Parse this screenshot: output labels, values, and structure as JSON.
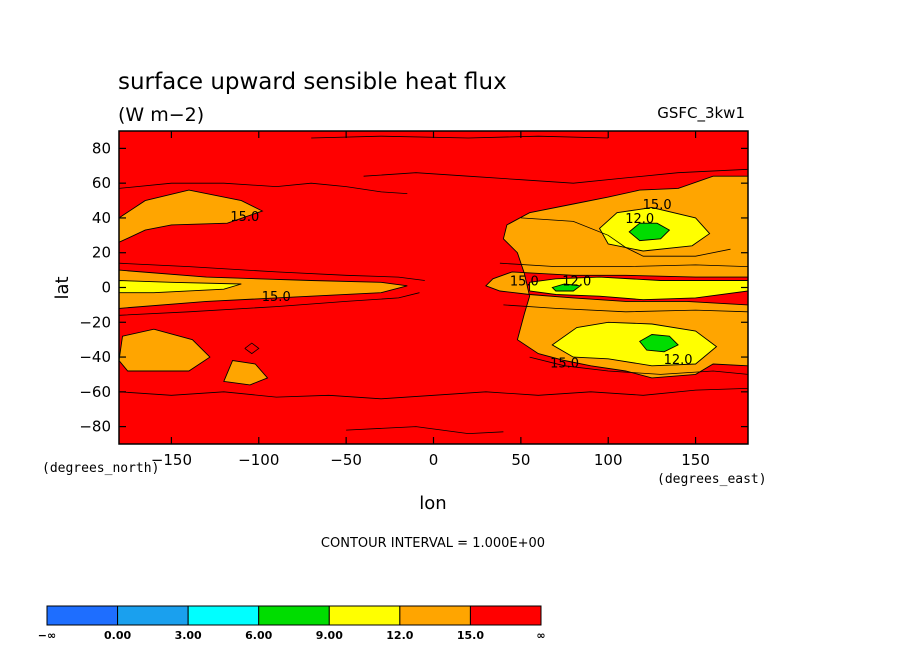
{
  "chart_data": {
    "type": "heatmap",
    "title": "surface upward sensible heat flux",
    "units": "(W m−2)",
    "dataset": "GSFC_3kw1",
    "xlabel": "lon",
    "ylabel": "lat",
    "x_unit_label": "(degrees_east)",
    "y_unit_label": "(degrees_north)",
    "xlim": [
      -180,
      180
    ],
    "ylim": [
      -90,
      90
    ],
    "x_ticks": [
      {
        "value": -150,
        "label": "−150"
      },
      {
        "value": -100,
        "label": "−100"
      },
      {
        "value": -50,
        "label": "−50"
      },
      {
        "value": 0,
        "label": "0"
      },
      {
        "value": 50,
        "label": "50"
      },
      {
        "value": 100,
        "label": "100"
      },
      {
        "value": 150,
        "label": "150"
      }
    ],
    "y_ticks": [
      {
        "value": 80,
        "label": "80"
      },
      {
        "value": 60,
        "label": "60"
      },
      {
        "value": 40,
        "label": "40"
      },
      {
        "value": 20,
        "label": "20"
      },
      {
        "value": 0,
        "label": "0"
      },
      {
        "value": -20,
        "label": "−20"
      },
      {
        "value": -40,
        "label": "−40"
      },
      {
        "value": -60,
        "label": "−60"
      },
      {
        "value": -80,
        "label": "−80"
      }
    ],
    "contour_interval_text": "CONTOUR INTERVAL = 1.000E+00",
    "background_level_color": "#ff0000",
    "regions": [
      {
        "level": 15,
        "color": "#ffa500",
        "points": [
          [
            -180,
            40
          ],
          [
            -165,
            50
          ],
          [
            -140,
            56
          ],
          [
            -110,
            50
          ],
          [
            -98,
            44
          ],
          [
            -118,
            37
          ],
          [
            -150,
            36
          ],
          [
            -165,
            33
          ],
          [
            -180,
            26
          ]
        ]
      },
      {
        "level": 15,
        "color": "#ffa500",
        "points": [
          [
            -180,
            10
          ],
          [
            -130,
            6
          ],
          [
            -70,
            4
          ],
          [
            -30,
            3
          ],
          [
            -15,
            1
          ],
          [
            -30,
            -3
          ],
          [
            -70,
            -5
          ],
          [
            -130,
            -8
          ],
          [
            -180,
            -12
          ]
        ]
      },
      {
        "level": 15,
        "color": "#ffa500",
        "points": [
          [
            -180,
            -42
          ],
          [
            -178,
            -28
          ],
          [
            -160,
            -24
          ],
          [
            -138,
            -30
          ],
          [
            -128,
            -40
          ],
          [
            -140,
            -48
          ],
          [
            -175,
            -48
          ]
        ]
      },
      {
        "level": 15,
        "color": "#ffa500",
        "points": [
          [
            -120,
            -54
          ],
          [
            -115,
            -42
          ],
          [
            -102,
            -44
          ],
          [
            -95,
            -52
          ],
          [
            -105,
            -56
          ]
        ]
      },
      {
        "level": 15,
        "color": "#ffa500",
        "points": [
          [
            42,
            36
          ],
          [
            55,
            43
          ],
          [
            80,
            48
          ],
          [
            100,
            52
          ],
          [
            118,
            56
          ],
          [
            140,
            57
          ],
          [
            160,
            64
          ],
          [
            180,
            64
          ],
          [
            180,
            6
          ],
          [
            150,
            6
          ],
          [
            110,
            7
          ],
          [
            80,
            7
          ],
          [
            45,
            9
          ],
          [
            34,
            5
          ],
          [
            30,
            1
          ],
          [
            38,
            -2
          ],
          [
            55,
            -4
          ],
          [
            80,
            -6
          ],
          [
            110,
            -8
          ],
          [
            145,
            -8
          ],
          [
            180,
            -10
          ],
          [
            180,
            -45
          ],
          [
            160,
            -44
          ],
          [
            150,
            -50
          ],
          [
            125,
            -52
          ],
          [
            110,
            -48
          ],
          [
            90,
            -45
          ],
          [
            75,
            -42
          ],
          [
            60,
            -38
          ],
          [
            48,
            -30
          ],
          [
            52,
            -15
          ],
          [
            55,
            -5
          ],
          [
            52,
            8
          ],
          [
            48,
            20
          ],
          [
            40,
            28
          ]
        ]
      },
      {
        "level": 12,
        "color": "#ffff00",
        "points": [
          [
            -180,
            4
          ],
          [
            -150,
            3
          ],
          [
            -110,
            2
          ],
          [
            -120,
            -1
          ],
          [
            -160,
            -3
          ],
          [
            -180,
            -3
          ]
        ]
      },
      {
        "level": 12,
        "color": "#ffff00",
        "points": [
          [
            95,
            34
          ],
          [
            105,
            43
          ],
          [
            125,
            46
          ],
          [
            150,
            40
          ],
          [
            158,
            31
          ],
          [
            148,
            24
          ],
          [
            120,
            21
          ],
          [
            100,
            25
          ]
        ]
      },
      {
        "level": 12,
        "color": "#ffff00",
        "points": [
          [
            55,
            3
          ],
          [
            70,
            5
          ],
          [
            95,
            6
          ],
          [
            130,
            4
          ],
          [
            180,
            4
          ],
          [
            180,
            -2
          ],
          [
            150,
            -6
          ],
          [
            120,
            -7
          ],
          [
            95,
            -5
          ],
          [
            70,
            -4
          ],
          [
            55,
            -2
          ]
        ]
      },
      {
        "level": 12,
        "color": "#ffff00",
        "points": [
          [
            68,
            -33
          ],
          [
            82,
            -23
          ],
          [
            100,
            -20
          ],
          [
            125,
            -21
          ],
          [
            150,
            -25
          ],
          [
            162,
            -34
          ],
          [
            150,
            -44
          ],
          [
            125,
            -45
          ],
          [
            100,
            -41
          ],
          [
            80,
            -40
          ]
        ]
      },
      {
        "level": 6,
        "color": "#00dd00",
        "points": [
          [
            112,
            32
          ],
          [
            118,
            37
          ],
          [
            128,
            37
          ],
          [
            135,
            33
          ],
          [
            130,
            28
          ],
          [
            118,
            27
          ]
        ]
      },
      {
        "level": 6,
        "color": "#00dd00",
        "points": [
          [
            68,
            0
          ],
          [
            75,
            2
          ],
          [
            84,
            1
          ],
          [
            80,
            -2
          ],
          [
            70,
            -2
          ]
        ]
      },
      {
        "level": 6,
        "color": "#00dd00",
        "points": [
          [
            118,
            -31
          ],
          [
            125,
            -27
          ],
          [
            135,
            -28
          ],
          [
            140,
            -33
          ],
          [
            132,
            -37
          ],
          [
            122,
            -36
          ]
        ]
      }
    ],
    "contour_lines": [
      [
        [
          -180,
          57
        ],
        [
          -150,
          60
        ],
        [
          -120,
          60
        ],
        [
          -90,
          58
        ],
        [
          -70,
          60
        ],
        [
          -50,
          58
        ],
        [
          -30,
          55
        ],
        [
          -15,
          54
        ]
      ],
      [
        [
          -40,
          64
        ],
        [
          -10,
          66
        ],
        [
          20,
          64
        ],
        [
          50,
          62
        ],
        [
          80,
          60
        ],
        [
          110,
          63
        ],
        [
          140,
          66
        ],
        [
          180,
          68
        ]
      ],
      [
        [
          -180,
          -60
        ],
        [
          -150,
          -62
        ],
        [
          -120,
          -60
        ],
        [
          -90,
          -63
        ],
        [
          -60,
          -62
        ],
        [
          -30,
          -64
        ],
        [
          0,
          -62
        ],
        [
          30,
          -60
        ],
        [
          60,
          -62
        ],
        [
          90,
          -60
        ],
        [
          120,
          -62
        ],
        [
          150,
          -59
        ],
        [
          180,
          -58
        ]
      ],
      [
        [
          -180,
          14
        ],
        [
          -140,
          12
        ],
        [
          -90,
          9
        ],
        [
          -50,
          7
        ],
        [
          -20,
          6
        ],
        [
          -5,
          4
        ]
      ],
      [
        [
          -180,
          -16
        ],
        [
          -140,
          -14
        ],
        [
          -90,
          -11
        ],
        [
          -50,
          -8
        ],
        [
          -20,
          -6
        ],
        [
          -8,
          -3
        ]
      ],
      [
        [
          38,
          14
        ],
        [
          70,
          12
        ],
        [
          110,
          12
        ],
        [
          150,
          13
        ],
        [
          180,
          12
        ]
      ],
      [
        [
          40,
          -10
        ],
        [
          70,
          -12
        ],
        [
          110,
          -14
        ],
        [
          150,
          -13
        ],
        [
          180,
          -14
        ]
      ],
      [
        [
          50,
          40
        ],
        [
          80,
          38
        ],
        [
          100,
          30
        ],
        [
          110,
          23
        ],
        [
          120,
          18
        ],
        [
          150,
          18
        ],
        [
          170,
          22
        ]
      ],
      [
        [
          55,
          -40
        ],
        [
          75,
          -45
        ],
        [
          100,
          -48
        ],
        [
          130,
          -50
        ],
        [
          160,
          -48
        ],
        [
          180,
          -50
        ]
      ],
      [
        [
          -70,
          86
        ],
        [
          -30,
          87
        ],
        [
          20,
          86
        ],
        [
          60,
          87
        ],
        [
          100,
          86
        ]
      ],
      [
        [
          -50,
          -82
        ],
        [
          -10,
          -80
        ],
        [
          20,
          -84
        ],
        [
          40,
          -83
        ]
      ],
      [
        [
          -108,
          -35
        ],
        [
          -104,
          -32
        ],
        [
          -100,
          -35
        ],
        [
          -104,
          -38
        ],
        [
          -108,
          -35
        ]
      ]
    ],
    "contour_labels": [
      {
        "x": -108,
        "y": 41,
        "text": "15.0"
      },
      {
        "x": -90,
        "y": -5,
        "text": "15.0"
      },
      {
        "x": 52,
        "y": 4,
        "text": "15.0"
      },
      {
        "x": 82,
        "y": 4,
        "text": "12.0"
      },
      {
        "x": 128,
        "y": 48,
        "text": "15.0"
      },
      {
        "x": 118,
        "y": 40,
        "text": "12.0"
      },
      {
        "x": 75,
        "y": -43,
        "text": "15.0"
      },
      {
        "x": 140,
        "y": -41,
        "text": "12.0"
      }
    ],
    "colorbar": {
      "colors": [
        "#1e6eff",
        "#1aa0ee",
        "#00ffff",
        "#00dd00",
        "#ffff00",
        "#ffa500",
        "#ff0000"
      ],
      "labels": [
        "−∞",
        "0.00",
        "3.00",
        "6.00",
        "9.00",
        "12.0",
        "15.0",
        "∞"
      ]
    }
  }
}
